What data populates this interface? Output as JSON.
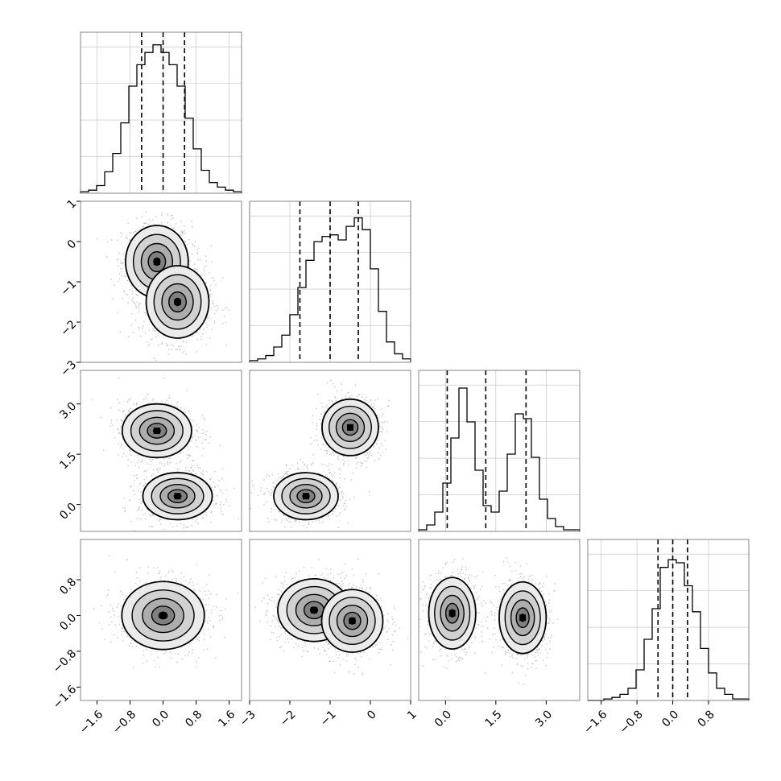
{
  "chart_data": {
    "type": "corner",
    "title": "",
    "variables": [
      {
        "range": [
          -2.0,
          1.9
        ],
        "ticks": [
          -1.6,
          -0.8,
          0.0,
          0.8,
          1.6
        ],
        "tick_labels": [
          "−1.6",
          "−0.8",
          "0.0",
          "0.8",
          "1.6"
        ],
        "quantiles": [
          -0.52,
          0.0,
          0.52
        ],
        "hist_bins_edges_start": -2.0,
        "hist_bin_width": 0.195,
        "hist_counts": [
          1,
          2,
          5,
          14,
          26,
          46,
          70,
          84,
          92,
          97,
          92,
          84,
          70,
          49,
          29,
          15,
          7,
          4,
          2,
          1
        ],
        "hist_max": 100
      },
      {
        "range": [
          -3.0,
          1.0
        ],
        "ticks": [
          -3,
          -2,
          -1,
          0,
          1
        ],
        "tick_labels": [
          "−3",
          "−2",
          "−1",
          "0",
          "1"
        ],
        "quantiles": [
          -1.75,
          -1.0,
          -0.3
        ],
        "hist_bins_edges_start": -3.0,
        "hist_bin_width": 0.2,
        "hist_counts": [
          1,
          2,
          4,
          9,
          16,
          28,
          44,
          60,
          71,
          74,
          75,
          72,
          80,
          85,
          78,
          55,
          30,
          12,
          5,
          2
        ],
        "hist_max": 90
      },
      {
        "range": [
          -0.8,
          4.0
        ],
        "ticks": [
          0.0,
          1.5,
          3.0
        ],
        "tick_labels": [
          "0.0",
          "1.5",
          "3.0"
        ],
        "quantiles": [
          0.05,
          1.2,
          2.4
        ],
        "hist_bins_edges_start": -0.8,
        "hist_bin_width": 0.24,
        "hist_counts": [
          1,
          4,
          12,
          30,
          58,
          89,
          68,
          38,
          16,
          12,
          25,
          48,
          73,
          70,
          46,
          20,
          8,
          3,
          1,
          1
        ],
        "hist_max": 95
      },
      {
        "range": [
          -1.9,
          1.7
        ],
        "ticks": [
          -1.6,
          -0.8,
          0.0,
          0.8
        ],
        "tick_labels": [
          "−1.6",
          "−0.8",
          "0.0",
          "0.8"
        ],
        "quantiles": [
          -0.33,
          0.0,
          0.33
        ],
        "hist_bins_edges_start": -1.9,
        "hist_bin_width": 0.18,
        "hist_counts": [
          0,
          0,
          1,
          2,
          4,
          8,
          20,
          40,
          60,
          87,
          92,
          90,
          75,
          58,
          34,
          18,
          8,
          4,
          1,
          1
        ],
        "hist_max": 100
      }
    ],
    "pairs": [
      {
        "row": 1,
        "col": 0,
        "components": [
          {
            "mean": [
              -0.15,
              -0.5
            ],
            "sd": [
              0.38,
              0.45
            ]
          },
          {
            "mean": [
              0.35,
              -1.5
            ],
            "sd": [
              0.38,
              0.45
            ]
          }
        ]
      },
      {
        "row": 2,
        "col": 0,
        "components": [
          {
            "mean": [
              -0.15,
              2.2
            ],
            "sd": [
              0.42,
              0.4
            ]
          },
          {
            "mean": [
              0.35,
              0.25
            ],
            "sd": [
              0.42,
              0.35
            ]
          }
        ]
      },
      {
        "row": 2,
        "col": 1,
        "components": [
          {
            "mean": [
              -0.5,
              2.3
            ],
            "sd": [
              0.35,
              0.42
            ]
          },
          {
            "mean": [
              -1.6,
              0.25
            ],
            "sd": [
              0.4,
              0.35
            ]
          }
        ]
      },
      {
        "row": 3,
        "col": 0,
        "components": [
          {
            "mean": [
              0.0,
              0.0
            ],
            "sd": [
              0.5,
              0.38
            ]
          }
        ]
      },
      {
        "row": 3,
        "col": 1,
        "components": [
          {
            "mean": [
              -1.4,
              0.12
            ],
            "sd": [
              0.45,
              0.35
            ]
          },
          {
            "mean": [
              -0.45,
              -0.12
            ],
            "sd": [
              0.38,
              0.35
            ]
          }
        ]
      },
      {
        "row": 3,
        "col": 2,
        "components": [
          {
            "mean": [
              0.2,
              0.05
            ],
            "sd": [
              0.35,
              0.4
            ]
          },
          {
            "mean": [
              2.3,
              -0.05
            ],
            "sd": [
              0.35,
              0.4
            ]
          }
        ]
      }
    ]
  },
  "colors": {
    "contour": "#000000",
    "scatter": "#9a9a9a",
    "grid": "#bdbdbd",
    "frame": "#666666"
  }
}
